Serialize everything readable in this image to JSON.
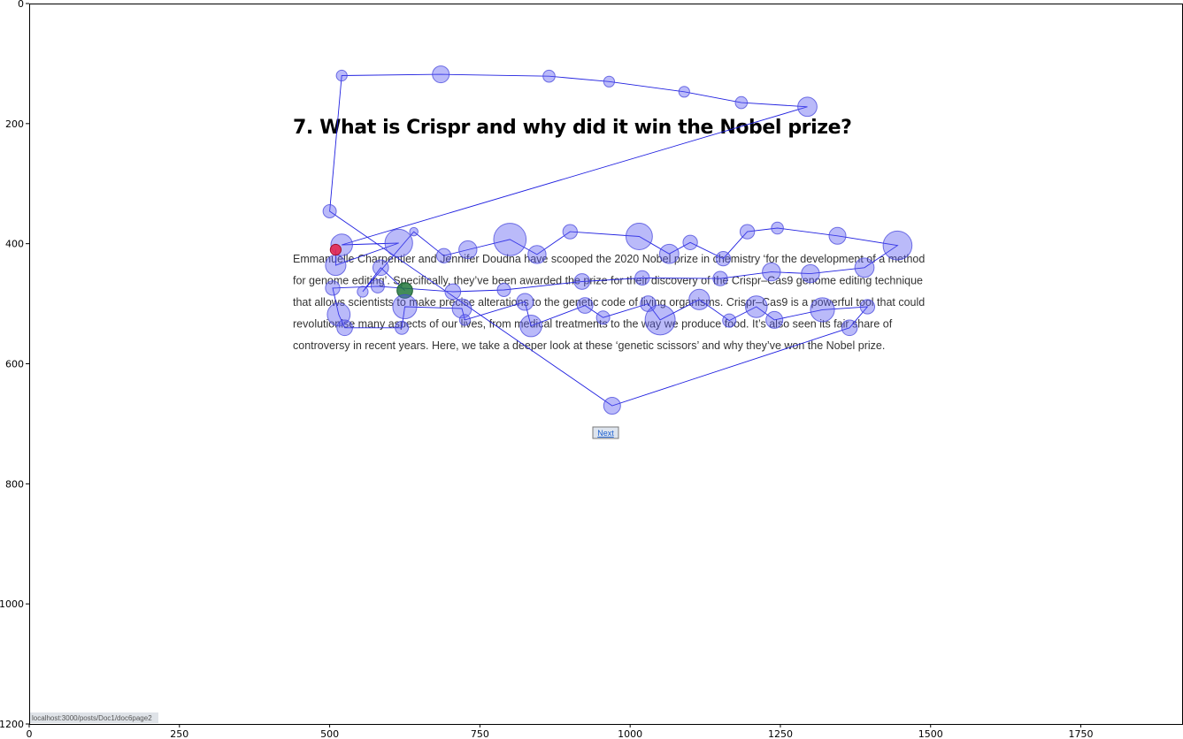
{
  "chart_data": {
    "type": "scatter",
    "title": "",
    "xlabel": "",
    "ylabel": "",
    "xlim": [
      0,
      1920
    ],
    "ylim": [
      1200,
      0
    ],
    "x_ticks": [
      0,
      250,
      500,
      750,
      1000,
      1250,
      1500,
      1750
    ],
    "y_ticks": [
      0,
      200,
      400,
      600,
      800,
      1000,
      1200
    ],
    "grid": false,
    "background_page": {
      "heading": "7. What is Crispr and why did it win the Nobel prize?",
      "paragraph_lines": [
        "Emmanuelle Charpentier and Jennifer Doudna have scooped the 2020 Nobel prize in chemistry ‘for the development of a method",
        "for genome editing’. Specifically, they’ve been awarded the prize for their discovery of the Crispr–Cas9 genome editing technique",
        "that allows scientists to make precise alterations to the genetic code of living organisms. Crispr–Cas9 is a powerful tool that could",
        "revolutionise many aspects of our lives, from medical treatments to the way we produce food. It’s also seen its fair share of",
        "controversy in recent years. Here, we take a deeper look at these ‘genetic scissors’ and why they’ve won the Nobel prize."
      ],
      "next_button": "Next",
      "status_url": "localhost:3000/posts/Doc1/doc6page2"
    },
    "series": [
      {
        "points": [
          [
            625,
            478,
            13
          ],
          [
            585,
            440,
            13
          ],
          [
            555,
            480,
            9
          ],
          [
            640,
            380,
            7
          ],
          [
            690,
            420,
            12
          ],
          [
            730,
            410,
            15
          ],
          [
            800,
            393,
            27
          ],
          [
            845,
            418,
            15
          ],
          [
            900,
            380,
            12
          ],
          [
            1015,
            388,
            22
          ],
          [
            1065,
            417,
            16
          ],
          [
            1100,
            398,
            12
          ],
          [
            1155,
            425,
            12
          ],
          [
            1195,
            380,
            12
          ],
          [
            1245,
            374,
            10
          ],
          [
            1345,
            387,
            14
          ],
          [
            1445,
            403,
            24
          ],
          [
            1390,
            440,
            16
          ],
          [
            1300,
            450,
            15
          ],
          [
            1235,
            447,
            15
          ],
          [
            1150,
            458,
            12
          ],
          [
            1020,
            457,
            12
          ],
          [
            920,
            463,
            13
          ],
          [
            790,
            477,
            11
          ],
          [
            705,
            480,
            13
          ],
          [
            580,
            471,
            11
          ],
          [
            505,
            474,
            12
          ],
          [
            515,
            518,
            19
          ],
          [
            525,
            540,
            13
          ],
          [
            620,
            540,
            11
          ],
          [
            625,
            505,
            20
          ],
          [
            720,
            508,
            16
          ],
          [
            725,
            527,
            9
          ],
          [
            825,
            497,
            14
          ],
          [
            835,
            537,
            18
          ],
          [
            925,
            503,
            13
          ],
          [
            955,
            523,
            11
          ],
          [
            1030,
            500,
            13
          ],
          [
            1050,
            527,
            25
          ],
          [
            1115,
            493,
            17
          ],
          [
            1165,
            528,
            11
          ],
          [
            1210,
            505,
            18
          ],
          [
            1240,
            527,
            14
          ],
          [
            1320,
            510,
            20
          ],
          [
            1395,
            505,
            12
          ],
          [
            1365,
            540,
            13
          ],
          [
            970,
            670,
            14
          ],
          [
            500,
            346,
            11
          ],
          [
            520,
            120,
            9
          ],
          [
            685,
            118,
            14
          ],
          [
            865,
            121,
            10
          ],
          [
            965,
            130,
            9
          ],
          [
            1090,
            147,
            9
          ],
          [
            1185,
            165,
            10
          ],
          [
            1295,
            172,
            16
          ],
          [
            520,
            402,
            18
          ],
          [
            615,
            399,
            23
          ],
          [
            510,
            436,
            17
          ],
          [
            510,
            410,
            9
          ]
        ]
      }
    ]
  }
}
